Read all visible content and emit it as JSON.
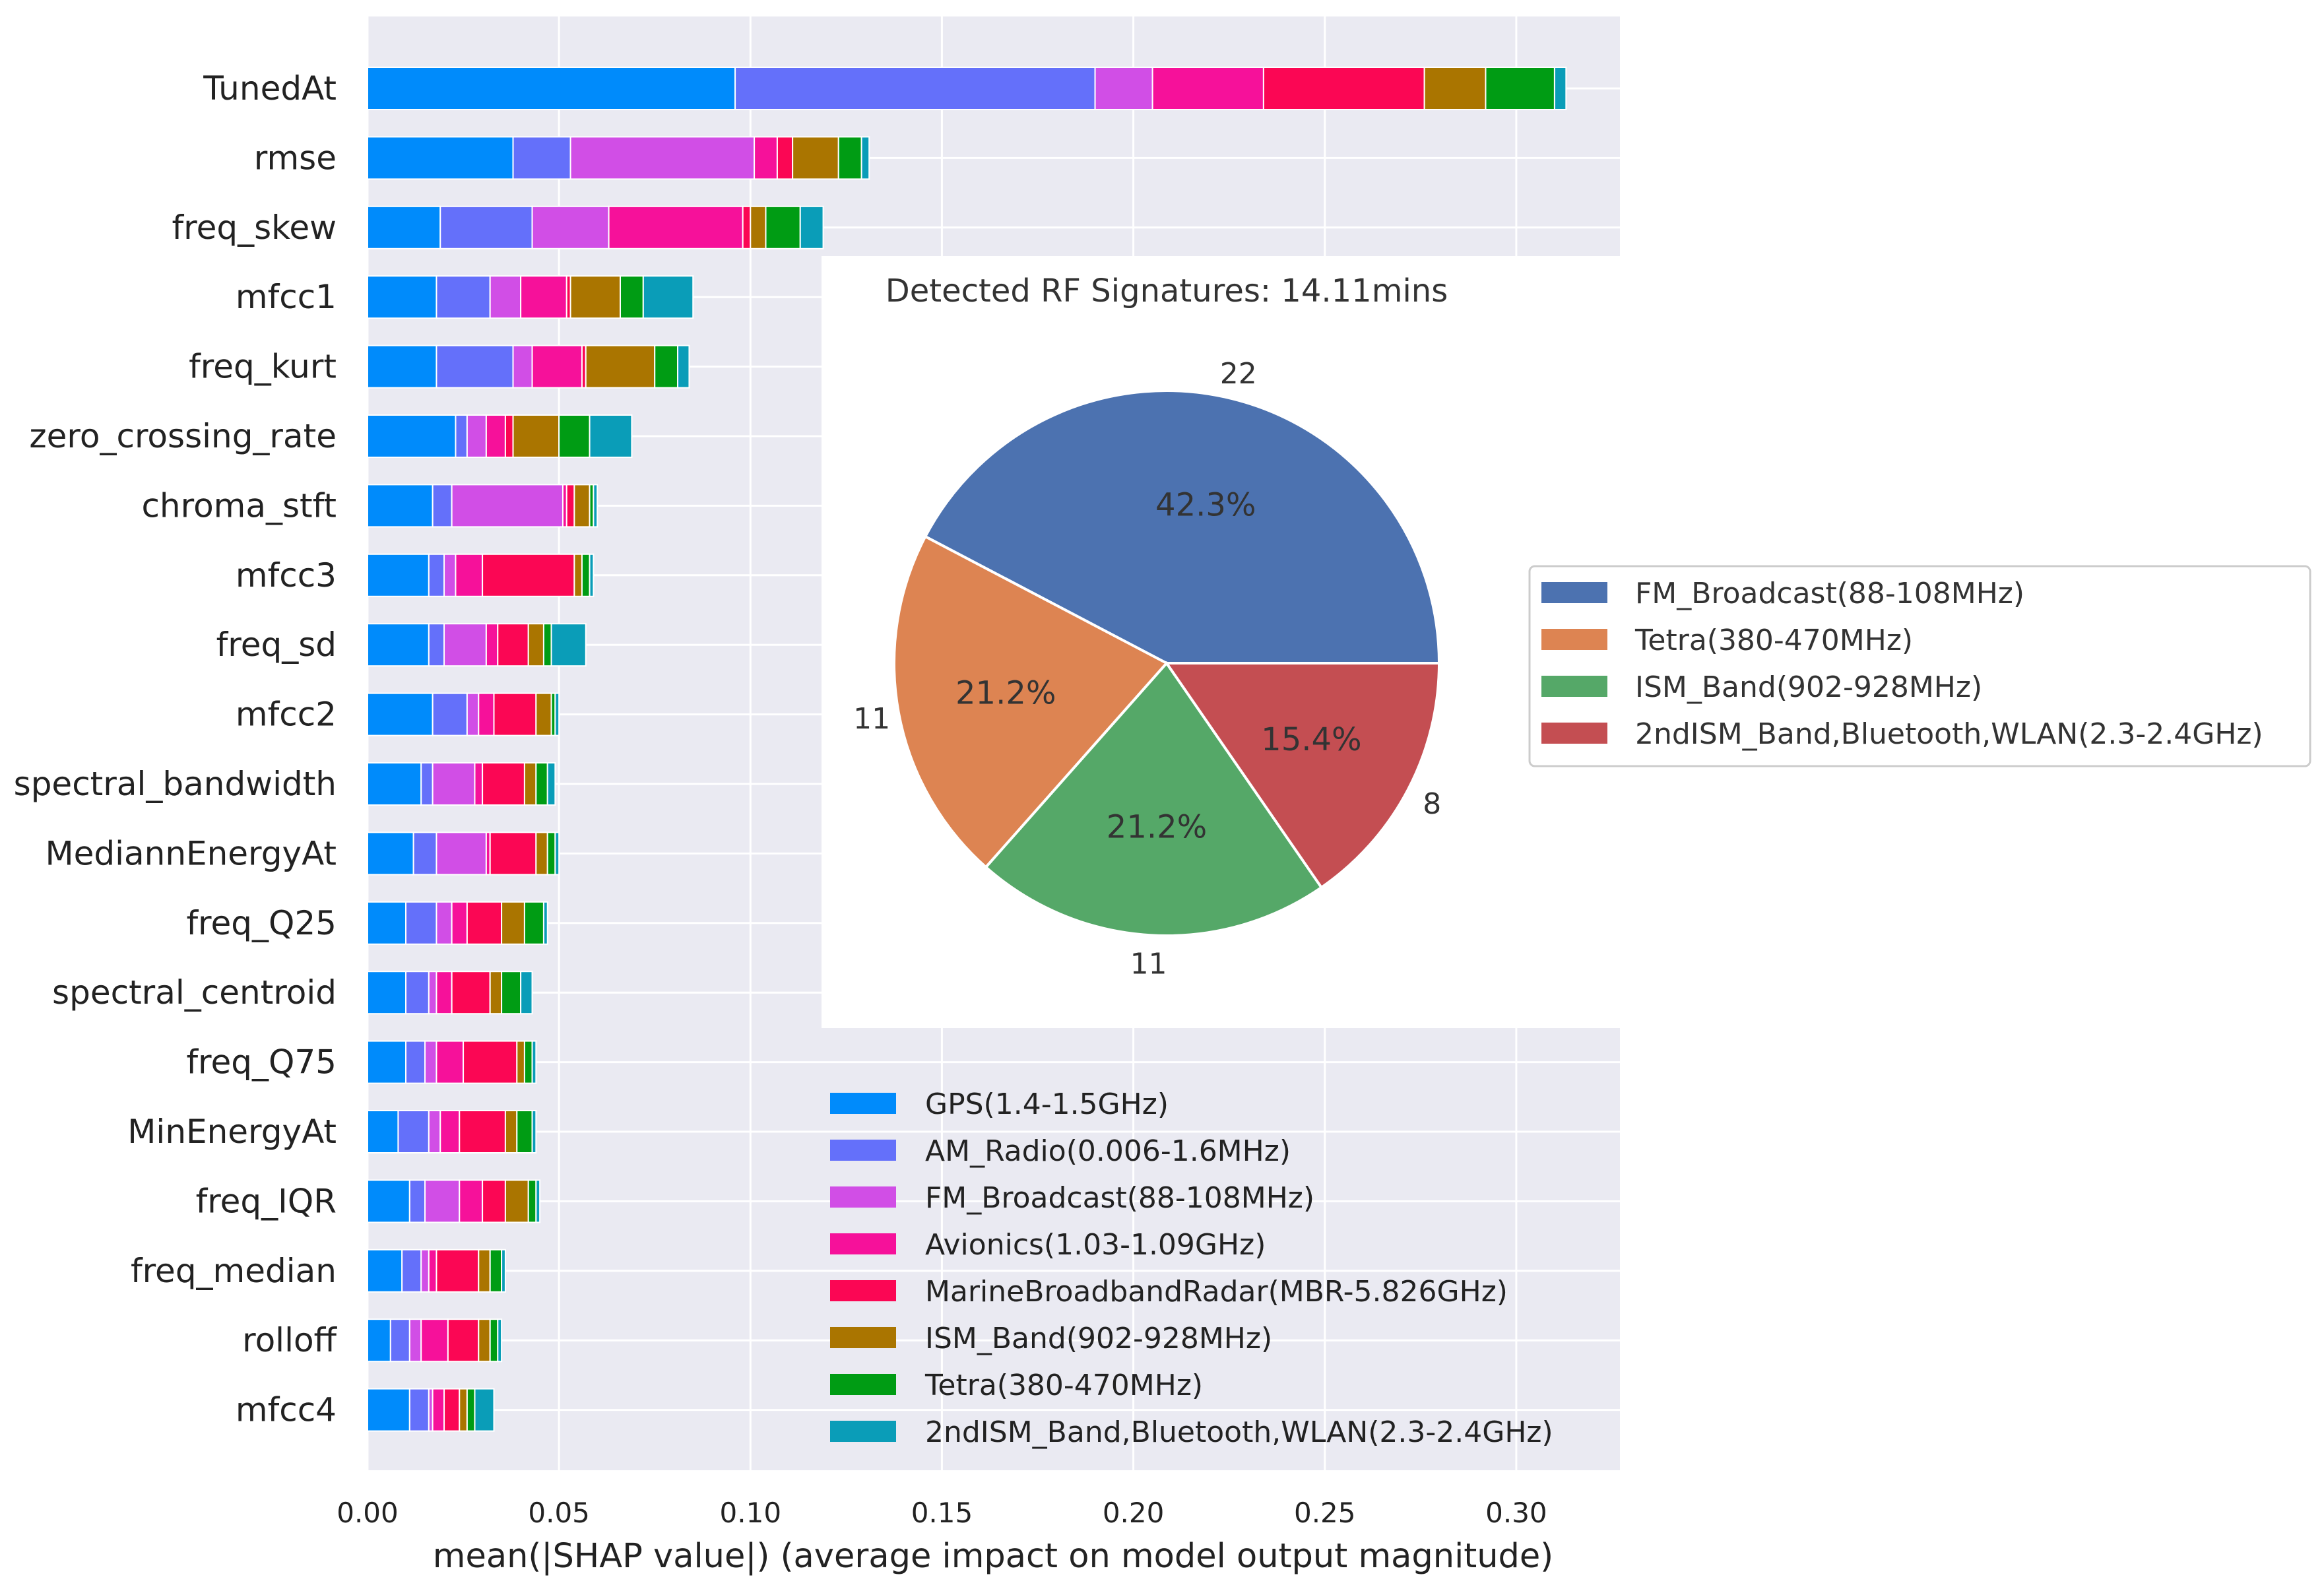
{
  "chart_data": [
    {
      "type": "bar",
      "orientation": "horizontal",
      "stacked": true,
      "xlabel": "mean(|SHAP value|) (average impact on model output magnitude)",
      "ylabel": "",
      "xlim": [
        0,
        0.33
      ],
      "xticks": [
        "0.00",
        "0.05",
        "0.10",
        "0.15",
        "0.20",
        "0.25",
        "0.30"
      ],
      "xtick_values": [
        0,
        0.05,
        0.1,
        0.15,
        0.2,
        0.25,
        0.3
      ],
      "grid": true,
      "legend_position": "lower-right",
      "categories": [
        "TunedAt",
        "rmse",
        "freq_skew",
        "mfcc1",
        "freq_kurt",
        "zero_crossing_rate",
        "chroma_stft",
        "mfcc3",
        "freq_sd",
        "mfcc2",
        "spectral_bandwidth",
        "MediannEnergyAt",
        "freq_Q25",
        "spectral_centroid",
        "freq_Q75",
        "MinEnergyAt",
        "freq_IQR",
        "freq_median",
        "rolloff",
        "mfcc4"
      ],
      "series": [
        {
          "name": "GPS(1.4-1.5GHz)",
          "color": "#008bfb",
          "values": [
            0.096,
            0.038,
            0.019,
            0.018,
            0.018,
            0.023,
            0.017,
            0.016,
            0.016,
            0.017,
            0.014,
            0.012,
            0.01,
            0.01,
            0.01,
            0.008,
            0.011,
            0.009,
            0.006,
            0.011
          ]
        },
        {
          "name": "AM_Radio(0.006-1.6MHz)",
          "color": "#6470fa",
          "values": [
            0.094,
            0.015,
            0.024,
            0.014,
            0.02,
            0.003,
            0.005,
            0.004,
            0.004,
            0.009,
            0.003,
            0.006,
            0.008,
            0.006,
            0.005,
            0.008,
            0.004,
            0.005,
            0.005,
            0.005
          ]
        },
        {
          "name": "FM_Broadcast(88-108MHz)",
          "color": "#d14ee6",
          "values": [
            0.015,
            0.048,
            0.02,
            0.008,
            0.005,
            0.005,
            0.029,
            0.003,
            0.011,
            0.003,
            0.011,
            0.013,
            0.004,
            0.002,
            0.003,
            0.003,
            0.009,
            0.002,
            0.003,
            0.001
          ]
        },
        {
          "name": "Avionics(1.03-1.09GHz)",
          "color": "#f6119a",
          "values": [
            0.029,
            0.006,
            0.035,
            0.012,
            0.013,
            0.005,
            0.001,
            0.007,
            0.003,
            0.004,
            0.002,
            0.001,
            0.004,
            0.004,
            0.007,
            0.005,
            0.006,
            0.002,
            0.007,
            0.003
          ]
        },
        {
          "name": "MarineBroadbandRadar(MBR-5.826GHz)",
          "color": "#fb0654",
          "values": [
            0.042,
            0.004,
            0.002,
            0.001,
            0.001,
            0.002,
            0.002,
            0.024,
            0.008,
            0.011,
            0.011,
            0.012,
            0.009,
            0.01,
            0.014,
            0.012,
            0.006,
            0.011,
            0.008,
            0.004
          ]
        },
        {
          "name": "ISM_Band(902-928MHz)",
          "color": "#aa7500",
          "values": [
            0.016,
            0.012,
            0.004,
            0.013,
            0.018,
            0.012,
            0.004,
            0.002,
            0.004,
            0.004,
            0.003,
            0.003,
            0.006,
            0.003,
            0.002,
            0.003,
            0.006,
            0.003,
            0.003,
            0.002
          ]
        },
        {
          "name": "Tetra(380-470MHz)",
          "color": "#009c14",
          "values": [
            0.018,
            0.006,
            0.009,
            0.006,
            0.006,
            0.008,
            0.001,
            0.002,
            0.002,
            0.001,
            0.003,
            0.002,
            0.005,
            0.005,
            0.002,
            0.004,
            0.002,
            0.003,
            0.002,
            0.002
          ]
        },
        {
          "name": "2ndISM_Band,Bluetooth,WLAN(2.3-2.4GHz)",
          "color": "#0a9db8",
          "values": [
            0.003,
            0.002,
            0.006,
            0.013,
            0.003,
            0.011,
            0.001,
            0.001,
            0.009,
            0.001,
            0.002,
            0.001,
            0.001,
            0.003,
            0.001,
            0.001,
            0.001,
            0.001,
            0.001,
            0.005
          ]
        }
      ]
    },
    {
      "type": "pie",
      "title": "Detected RF Signatures: 14.11mins",
      "legend_position": "right",
      "slices": [
        {
          "label": "FM_Broadcast(88-108MHz)",
          "count": "22",
          "percent": "42.3%",
          "value": 22,
          "color": "#4c72b0"
        },
        {
          "label": "Tetra(380-470MHz)",
          "count": "11",
          "percent": "21.2%",
          "value": 11,
          "color": "#dd8452"
        },
        {
          "label": "ISM_Band(902-928MHz)",
          "count": "11",
          "percent": "21.2%",
          "value": 11,
          "color": "#55a868"
        },
        {
          "label": "2ndISM_Band,Bluetooth,WLAN(2.3-2.4GHz)",
          "count": "8",
          "percent": "15.4%",
          "value": 8,
          "color": "#c44e52"
        }
      ]
    }
  ]
}
